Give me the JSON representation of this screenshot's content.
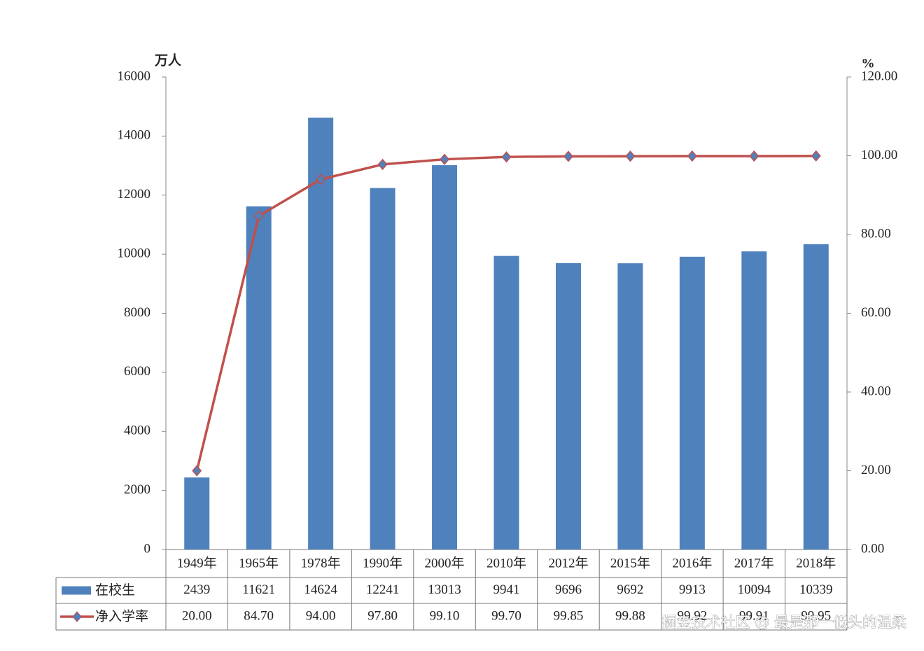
{
  "chart_data": {
    "type": "bar",
    "y_unit": "万人",
    "y2_unit": "%",
    "categories": [
      "1949年",
      "1965年",
      "1978年",
      "1990年",
      "2000年",
      "2010年",
      "2012年",
      "2015年",
      "2016年",
      "2017年",
      "2018年"
    ],
    "series": [
      {
        "name": "在校生",
        "type": "bar",
        "color": "#4f81bd",
        "values": [
          2439,
          11621,
          14624,
          12241,
          13013,
          9941,
          9696,
          9692,
          9913,
          10094,
          10339
        ]
      },
      {
        "name": "净入学率",
        "type": "line",
        "axis": "y2",
        "color": "#c0504d",
        "marker_color": "#4f81bd",
        "values": [
          20,
          84.7,
          94,
          97.8,
          99.1,
          99.7,
          99.85,
          99.88,
          99.92,
          99.91,
          99.95
        ],
        "value_labels": [
          "20.00",
          "84.70",
          "94.00",
          "97.80",
          "99.10",
          "99.70",
          "99.85",
          "99.88",
          "99.92",
          "99.91",
          "99.95"
        ]
      }
    ],
    "ylim": [
      0,
      16000
    ],
    "yticks": [
      0,
      2000,
      4000,
      6000,
      8000,
      10000,
      12000,
      14000,
      16000
    ],
    "y2lim": [
      0,
      120
    ],
    "y2ticks": [
      {
        "value": 0,
        "label": "0.00"
      },
      {
        "value": 20,
        "label": "20.00"
      },
      {
        "value": 40,
        "label": "40.00"
      },
      {
        "value": 60,
        "label": "60.00"
      },
      {
        "value": 80,
        "label": "80.00"
      },
      {
        "value": 100,
        "label": "100.00"
      },
      {
        "value": 120,
        "label": "120.00"
      }
    ]
  },
  "watermark": "掘金技术社区 @ 最是那一低头的温柔"
}
